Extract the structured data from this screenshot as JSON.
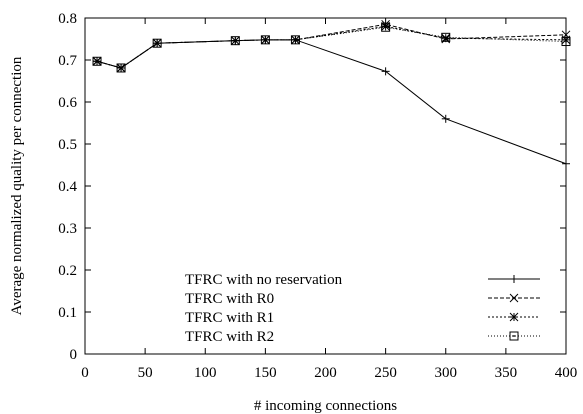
{
  "chart_data": {
    "type": "line",
    "title": "",
    "xlabel": "# incoming connections",
    "ylabel": "Average normalized quality per connection",
    "xlim": [
      0,
      400
    ],
    "ylim": [
      0,
      0.8
    ],
    "xticks": [
      0,
      50,
      100,
      150,
      200,
      250,
      300,
      350,
      400
    ],
    "yticks": [
      0,
      0.1,
      0.2,
      0.3,
      0.4,
      0.5,
      0.6,
      0.7,
      0.8
    ],
    "xtick_labels": [
      "0",
      "50",
      "100",
      "150",
      "200",
      "250",
      "300",
      "350",
      "400"
    ],
    "ytick_labels": [
      "0",
      "0.1",
      "0.2",
      "0.3",
      "0.4",
      "0.5",
      "0.6",
      "0.7",
      "0.8"
    ],
    "grid": false,
    "legend_position": "bottom-right",
    "x": [
      10,
      30,
      60,
      125,
      150,
      175,
      250,
      300,
      400
    ],
    "series": [
      {
        "name": "TFRC with no reservation",
        "marker": "plus",
        "line_style": "solid",
        "values": [
          0.697,
          0.681,
          0.74,
          0.746,
          0.748,
          0.748,
          0.673,
          0.56,
          0.453
        ]
      },
      {
        "name": "TFRC with R0",
        "marker": "x",
        "line_style": "dashed",
        "values": [
          0.697,
          0.681,
          0.74,
          0.746,
          0.748,
          0.748,
          0.785,
          0.75,
          0.76
        ]
      },
      {
        "name": "TFRC with R1",
        "marker": "star",
        "line_style": "dotted",
        "values": [
          0.697,
          0.681,
          0.74,
          0.746,
          0.748,
          0.748,
          0.78,
          0.752,
          0.748
        ]
      },
      {
        "name": "TFRC with R2",
        "marker": "square",
        "line_style": "fine-dotted",
        "values": [
          0.697,
          0.681,
          0.74,
          0.746,
          0.748,
          0.748,
          0.778,
          0.754,
          0.744
        ]
      }
    ]
  }
}
